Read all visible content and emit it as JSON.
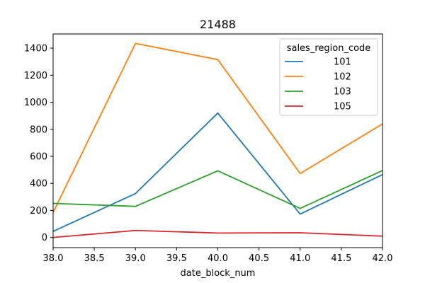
{
  "chart_data": {
    "type": "line",
    "title": "21488",
    "xlabel": "date_block_num",
    "ylabel": "",
    "xlim": [
      38.0,
      42.0
    ],
    "ylim": [
      -75,
      1505
    ],
    "x": [
      38,
      39,
      40,
      41,
      42
    ],
    "x_ticks": [
      38.0,
      38.5,
      39.0,
      39.5,
      40.0,
      40.5,
      41.0,
      41.5,
      42.0
    ],
    "x_tick_labels": [
      "38.0",
      "38.5",
      "39.0",
      "39.5",
      "40.0",
      "40.5",
      "41.0",
      "41.5",
      "42.0"
    ],
    "y_ticks": [
      0,
      200,
      400,
      600,
      800,
      1000,
      1200,
      1400
    ],
    "y_tick_labels": [
      "0",
      "200",
      "400",
      "600",
      "800",
      "1000",
      "1200",
      "1400"
    ],
    "grid": false,
    "legend": {
      "title": "sales_region_code",
      "position": "top-right"
    },
    "series": [
      {
        "name": "101",
        "color": "#1f77b4",
        "values": [
          45,
          325,
          920,
          173,
          465
        ]
      },
      {
        "name": "102",
        "color": "#ff7f0e",
        "values": [
          185,
          1435,
          1315,
          473,
          840
        ]
      },
      {
        "name": "103",
        "color": "#2ca02c",
        "values": [
          252,
          230,
          493,
          215,
          495
        ]
      },
      {
        "name": "105",
        "color": "#d62728",
        "values": [
          0,
          52,
          33,
          35,
          10
        ]
      }
    ]
  }
}
